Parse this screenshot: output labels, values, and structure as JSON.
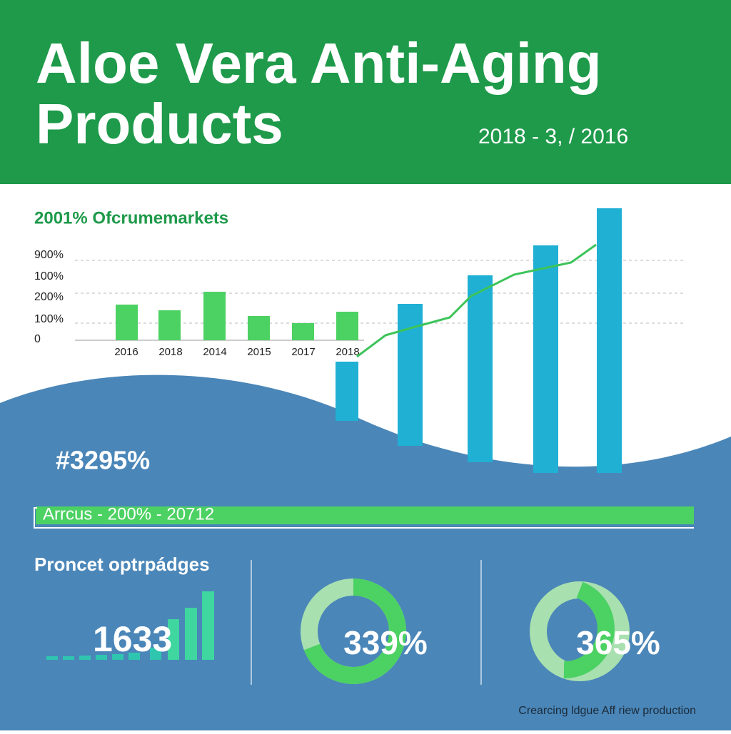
{
  "header": {
    "title_lines": [
      "Aloe Vera Anti-Aging",
      "Products"
    ],
    "date": "2018 - 3, / 2016"
  },
  "chart_panel": {
    "title": "2001% Ofcrumemarkets",
    "axis_labels": [
      "900%",
      "100%",
      "200%",
      "100%",
      "0"
    ],
    "categories": [
      "2016",
      "2018",
      "2014",
      "2015",
      "2017",
      "2018"
    ]
  },
  "highlight": "#3295%",
  "banner": "Arrcus - 200% - 20712",
  "stats": {
    "title": "Proncet optrpádges",
    "items": [
      "1633",
      "339%",
      "365%"
    ]
  },
  "footer": "Crearcing ldgue Aff riew production"
}
